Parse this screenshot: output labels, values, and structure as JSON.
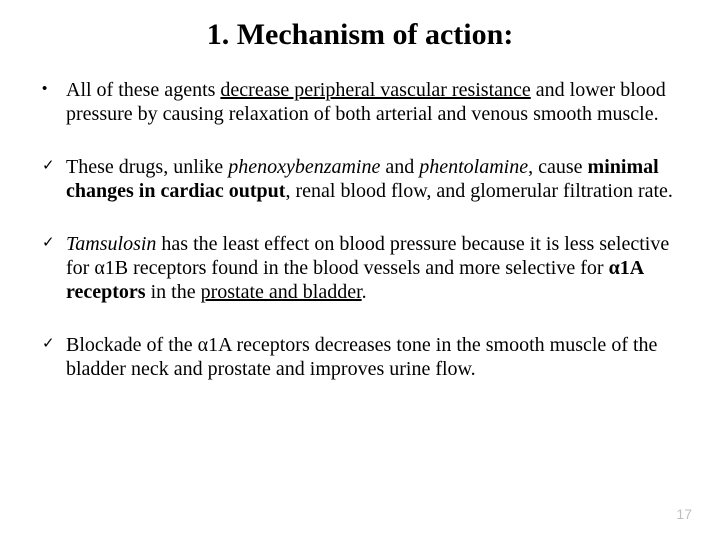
{
  "title": "1. Mechanism of action:",
  "b1": {
    "p1": "All of these agents ",
    "u1": "decrease peripheral vascular resistance",
    "p2": " and lower blood pressure by causing relaxation of both arterial and venous smooth muscle."
  },
  "b2": {
    "p1": "These drugs, unlike ",
    "i1": "phenoxybenzamine",
    "p2": " and ",
    "i2": "phentolamine",
    "p3": ", cause ",
    "bd1": "minimal changes in cardiac output",
    "p4": ", renal blood flow, and glomerular filtration rate."
  },
  "b3": {
    "i1": "Tamsulosin",
    "p1": " has the least effect on blood pressure because it is less selective for α1B receptors found in the blood vessels and more selective for ",
    "bd1": "α1A receptors",
    "p2": " in the ",
    "u1": "prostate and bladder",
    "p3": "."
  },
  "b4": {
    "p1": "Blockade of  the α1A receptors decreases tone in the smooth muscle of the bladder neck and prostate and improves urine flow."
  },
  "page_number": "17",
  "colors": {
    "text": "#000000",
    "background": "#ffffff",
    "pagenum": "#bfbfbf"
  },
  "typography": {
    "title_fontsize": 30,
    "body_fontsize": 20,
    "font_family": "Times New Roman"
  }
}
